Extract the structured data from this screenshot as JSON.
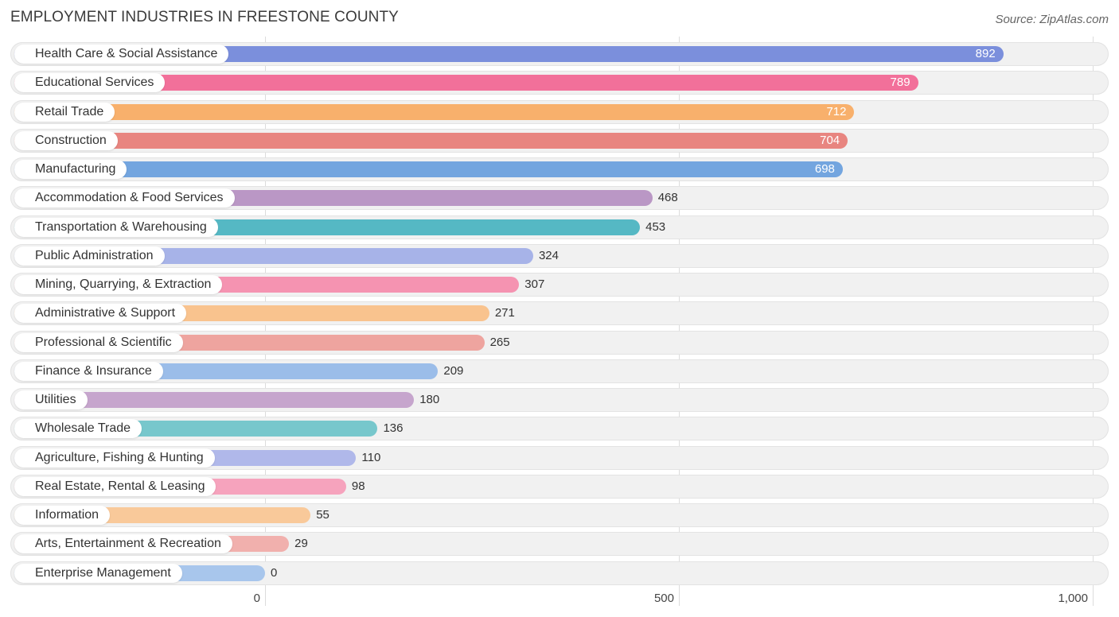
{
  "header": {
    "title": "EMPLOYMENT INDUSTRIES IN FREESTONE COUNTY",
    "source": "Source: ZipAtlas.com"
  },
  "chart_data": {
    "type": "bar",
    "orientation": "horizontal",
    "title": "EMPLOYMENT INDUSTRIES IN FREESTONE COUNTY",
    "xlabel": "",
    "ylabel": "",
    "xlim": [
      0,
      1000
    ],
    "ticks": [
      {
        "value": 0,
        "label": "0"
      },
      {
        "value": 500,
        "label": "500"
      },
      {
        "value": 1000,
        "label": "1,000"
      }
    ],
    "grid": true,
    "categories": [
      "Health Care & Social Assistance",
      "Educational Services",
      "Retail Trade",
      "Construction",
      "Manufacturing",
      "Accommodation & Food Services",
      "Transportation & Warehousing",
      "Public Administration",
      "Mining, Quarrying, & Extraction",
      "Administrative & Support",
      "Professional & Scientific",
      "Finance & Insurance",
      "Utilities",
      "Wholesale Trade",
      "Agriculture, Fishing & Hunting",
      "Real Estate, Rental & Leasing",
      "Information",
      "Arts, Entertainment & Recreation",
      "Enterprise Management"
    ],
    "values": [
      892,
      789,
      712,
      704,
      698,
      468,
      453,
      324,
      307,
      271,
      265,
      209,
      180,
      136,
      110,
      98,
      55,
      29,
      0
    ],
    "value_labels": [
      "892",
      "789",
      "712",
      "704",
      "698",
      "468",
      "453",
      "324",
      "307",
      "271",
      "265",
      "209",
      "180",
      "136",
      "110",
      "98",
      "55",
      "29",
      "0"
    ],
    "colors": [
      "#7b8fdc",
      "#f2709a",
      "#f8b06c",
      "#e88580",
      "#73a5df",
      "#ba97c5",
      "#55b8c4",
      "#a7b3e8",
      "#f593b1",
      "#f9c38e",
      "#eea49f",
      "#9bbde9",
      "#c6a5cd",
      "#77c7cc",
      "#b0b8ea",
      "#f6a3bd",
      "#f9c99a",
      "#f1b0ad",
      "#a8c6ec"
    ]
  }
}
